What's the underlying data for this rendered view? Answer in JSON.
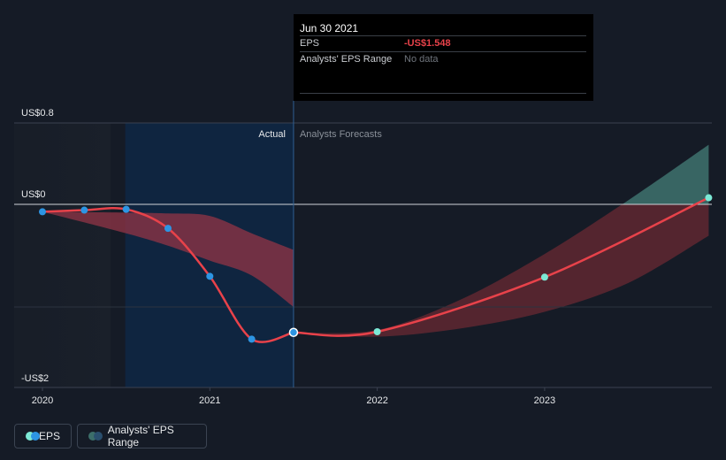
{
  "chart_data": {
    "type": "line",
    "title": "",
    "xlabel": "",
    "ylabel": "",
    "y_axis_labels": [
      "US$0.8",
      "US$0",
      "-US$2"
    ],
    "ylim": [
      -2.05,
      0.8
    ],
    "x_ticks": [
      {
        "x": 2020.0,
        "label": "2020"
      },
      {
        "x": 2021.0,
        "label": "2021"
      },
      {
        "x": 2022.0,
        "label": "2022"
      },
      {
        "x": 2023.0,
        "label": "2023"
      }
    ],
    "section_labels": {
      "actual": "Actual",
      "forecast": "Analysts Forecasts"
    },
    "divider_x": 2021.5,
    "series": [
      {
        "name": "EPS",
        "role": "actual",
        "points": [
          {
            "x": 2020.0,
            "y": -0.09
          },
          {
            "x": 2020.25,
            "y": -0.07
          },
          {
            "x": 2020.5,
            "y": -0.06
          },
          {
            "x": 2020.75,
            "y": -0.29
          },
          {
            "x": 2021.0,
            "y": -0.87
          },
          {
            "x": 2021.25,
            "y": -1.63
          },
          {
            "x": 2021.5,
            "y": -1.548
          }
        ]
      },
      {
        "name": "EPS",
        "role": "forecast",
        "points": [
          {
            "x": 2021.5,
            "y": -1.548
          },
          {
            "x": 2022.0,
            "y": -1.54
          },
          {
            "x": 2023.0,
            "y": -0.88
          },
          {
            "x": 2023.98,
            "y": 0.08
          }
        ]
      }
    ],
    "actual_range": {
      "x": [
        2020.0,
        2020.5,
        2020.75,
        2021.0,
        2021.25,
        2021.5
      ],
      "upper": [
        -0.09,
        -0.1,
        -0.11,
        -0.14,
        -0.35,
        -0.55
      ],
      "lower": [
        -0.09,
        -0.35,
        -0.5,
        -0.68,
        -0.86,
        -1.24
      ]
    },
    "forecast_range": {
      "x": [
        2021.5,
        2022.0,
        2022.5,
        2023.0,
        2023.5,
        2023.98
      ],
      "upper": [
        -1.548,
        -1.52,
        -1.15,
        -0.6,
        0.05,
        0.72
      ],
      "lower": [
        -1.548,
        -1.6,
        -1.5,
        -1.3,
        -0.95,
        -0.38
      ]
    },
    "colors": {
      "line": "#e8424a",
      "dot_actual": "#2d95e3",
      "dot_forecast": "#7ce8d5",
      "band_actual": "#8a3345",
      "band_forecast_neg": "#6a2a33",
      "band_forecast_pos": "#3c6e6a",
      "highlight": "#0e2a4a"
    }
  },
  "tooltip": {
    "date": "Jun 30 2021",
    "eps_label": "EPS",
    "eps_value": "-US$1.548",
    "range_label": "Analysts' EPS Range",
    "range_value": "No data"
  },
  "legend": {
    "eps_label": "EPS",
    "range_label": "Analysts' EPS Range"
  }
}
